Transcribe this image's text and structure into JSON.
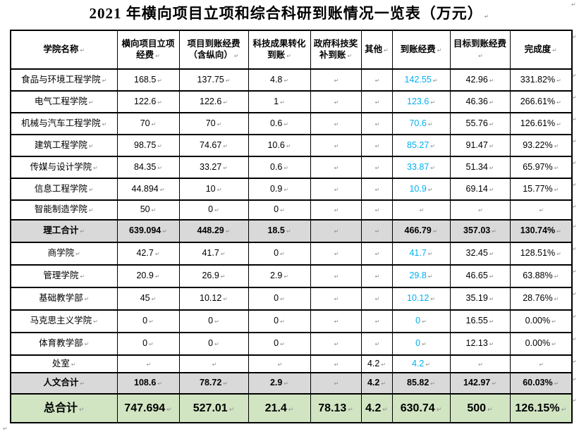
{
  "page": {
    "title": "2021 年横向项目立项和综合科研到账情况一览表（万元）"
  },
  "marks": {
    "paragraph_mark": "↵"
  },
  "colors": {
    "received_amount_blue": "#00B0F0",
    "subtotal_row_gray": "#D9D9D9",
    "grand_total_row_green": "#D2E5C3",
    "border_black": "#000000",
    "formatting_mark_gray": "#8f8f8f",
    "title_black": "#000000"
  },
  "table": {
    "columns": [
      "学院名称",
      "横向项目立项经费",
      "项目到账经费（含纵向）",
      "科技成果转化到账",
      "政府科技奖补到账",
      "其他",
      "到账经费",
      "目标到账经费",
      "完成度"
    ],
    "rows": [
      {
        "name": "食品与环境工程学院",
        "values": [
          "168.5",
          "137.75",
          "4.8",
          "",
          "",
          "142.55",
          "42.96",
          "331.82%"
        ],
        "emphasis": "none"
      },
      {
        "name": "电气工程学院",
        "values": [
          "122.6",
          "122.6",
          "1",
          "",
          "",
          "123.6",
          "46.36",
          "266.61%"
        ],
        "emphasis": "none"
      },
      {
        "name": "机械与汽车工程学院",
        "values": [
          "70",
          "70",
          "0.6",
          "",
          "",
          "70.6",
          "55.76",
          "126.61%"
        ],
        "emphasis": "none"
      },
      {
        "name": "建筑工程学院",
        "values": [
          "98.75",
          "74.67",
          "10.6",
          "",
          "",
          "85.27",
          "91.47",
          "93.22%"
        ],
        "emphasis": "none"
      },
      {
        "name": "传媒与设计学院",
        "values": [
          "84.35",
          "33.27",
          "0.6",
          "",
          "",
          "33.87",
          "51.34",
          "65.97%"
        ],
        "emphasis": "none"
      },
      {
        "name": "信息工程学院",
        "values": [
          "44.894",
          "10",
          "0.9",
          "",
          "",
          "10.9",
          "69.14",
          "15.77%"
        ],
        "emphasis": "none"
      },
      {
        "name": "智能制造学院",
        "values": [
          "50",
          "0",
          "0",
          "",
          "",
          "",
          "",
          ""
        ],
        "emphasis": "none"
      },
      {
        "name": "理工合计",
        "values": [
          "639.094",
          "448.29",
          "18.5",
          "",
          "",
          "466.79",
          "357.03",
          "130.74%"
        ],
        "emphasis": "subtotal"
      },
      {
        "name": "商学院",
        "values": [
          "42.7",
          "41.7",
          "0",
          "",
          "",
          "41.7",
          "32.45",
          "128.51%"
        ],
        "emphasis": "none"
      },
      {
        "name": "管理学院",
        "values": [
          "20.9",
          "26.9",
          "2.9",
          "",
          "",
          "29.8",
          "46.65",
          "63.88%"
        ],
        "emphasis": "none"
      },
      {
        "name": "基础教学部",
        "values": [
          "45",
          "10.12",
          "0",
          "",
          "",
          "10.12",
          "35.19",
          "28.76%"
        ],
        "emphasis": "none"
      },
      {
        "name": "马克思主义学院",
        "values": [
          "0",
          "0",
          "0",
          "",
          "",
          "0",
          "16.55",
          "0.00%"
        ],
        "emphasis": "none"
      },
      {
        "name": "体育教学部",
        "values": [
          "0",
          "0",
          "0",
          "",
          "",
          "0",
          "12.13",
          "0.00%"
        ],
        "emphasis": "none"
      },
      {
        "name": "处室",
        "values": [
          "",
          "",
          "",
          "",
          "4.2",
          "4.2",
          "",
          ""
        ],
        "emphasis": "none"
      },
      {
        "name": "人文合计",
        "values": [
          "108.6",
          "78.72",
          "2.9",
          "",
          "4.2",
          "85.82",
          "142.97",
          "60.03%"
        ],
        "emphasis": "subtotal"
      },
      {
        "name": "总合计",
        "values": [
          "747.694",
          "527.01",
          "21.4",
          "78.13",
          "4.2",
          "630.74",
          "500",
          "126.15%"
        ],
        "emphasis": "total"
      }
    ]
  }
}
